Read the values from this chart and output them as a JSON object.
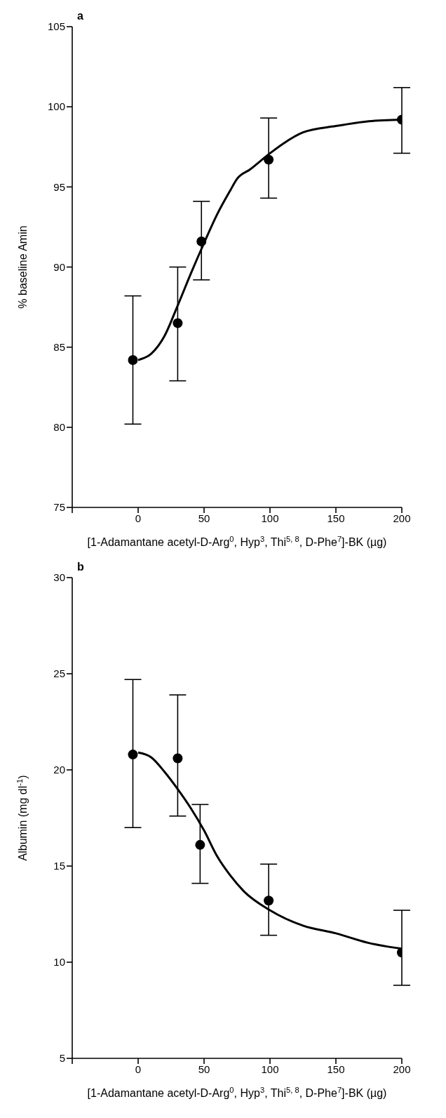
{
  "chart_data": [
    {
      "type": "scatter",
      "title": "a",
      "xlabel": "[1-Adamantane acetyl-D-Arg$^{0}$, Hyp$^{3}$, Thi$^{5, 8}$, D-Phe$^{7}$]-BK (µg)",
      "ylabel": "% baseline Amin",
      "xlim": [
        -50,
        200
      ],
      "xticks": [
        {
          "value": -50,
          "label": null
        },
        0,
        50,
        100,
        150,
        200
      ],
      "ylim": [
        75,
        105
      ],
      "yticks": [
        75,
        80,
        85,
        90,
        95,
        100,
        105
      ],
      "series": [
        {
          "color": "#000000",
          "marker": "circle",
          "x": [
            -4,
            30,
            48,
            99,
            200
          ],
          "values": [
            84.2,
            86.5,
            91.6,
            96.7,
            99.2
          ],
          "errors": [
            [
              80.2,
              88.2
            ],
            [
              82.9,
              90.0
            ],
            [
              89.2,
              94.1
            ],
            [
              94.3,
              99.3
            ],
            [
              97.1,
              101.2
            ]
          ]
        },
        {
          "type": "line",
          "color": "#000000",
          "marker": "none",
          "x": [
            0,
            10,
            20,
            30,
            40,
            50,
            60,
            70,
            75,
            85,
            100,
            110,
            125,
            150,
            175,
            200
          ],
          "values": [
            84.2,
            84.6,
            85.7,
            87.6,
            89.6,
            91.5,
            93.3,
            94.8,
            95.5,
            96.1,
            97.1,
            97.7,
            98.4,
            98.8,
            99.1,
            99.2
          ]
        }
      ]
    },
    {
      "type": "scatter",
      "title": "b",
      "xlabel": "[1-Adamantane acetyl-D-Arg$^{0}$, Hyp$^{3}$, Thi$^{5, 8}$, D-Phe$^{7}$]-BK (µg)",
      "ylabel": "Albumin (mg dl$^{-1}$)",
      "xlim": [
        -50,
        200
      ],
      "xticks": [
        {
          "value": -50,
          "label": null
        },
        0,
        50,
        100,
        150,
        200
      ],
      "ylim": [
        5,
        30
      ],
      "yticks": [
        5,
        10,
        15,
        20,
        25,
        30
      ],
      "series": [
        {
          "color": "#000000",
          "marker": "circle",
          "x": [
            -4,
            30,
            47,
            99,
            200
          ],
          "values": [
            20.8,
            20.6,
            16.1,
            13.2,
            10.5
          ],
          "errors": [
            [
              17.0,
              24.7
            ],
            [
              17.6,
              23.9
            ],
            [
              14.1,
              18.2
            ],
            [
              11.4,
              15.1
            ],
            [
              8.8,
              12.7
            ]
          ]
        },
        {
          "type": "line",
          "color": "#000000",
          "marker": "none",
          "x": [
            0,
            10,
            20,
            30,
            40,
            50,
            60,
            70,
            80,
            100,
            125,
            150,
            175,
            200
          ],
          "values": [
            20.9,
            20.65,
            19.9,
            19.0,
            18.0,
            16.85,
            15.5,
            14.5,
            13.7,
            12.7,
            11.9,
            11.5,
            11.0,
            10.7
          ]
        }
      ]
    }
  ]
}
